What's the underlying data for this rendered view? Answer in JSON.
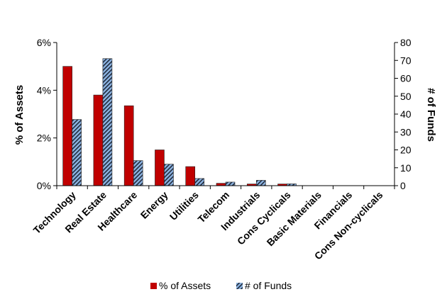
{
  "chart_data": {
    "type": "bar",
    "categories": [
      "Technology",
      "Real Estate",
      "Healthcare",
      "Energy",
      "Utilities",
      "Telecom",
      "Industrials",
      "Cons Cyclicals",
      "Basic Materials",
      "Financials",
      "Cons Non-cyclicals"
    ],
    "series": [
      {
        "name": "% of Assets",
        "axis": "left",
        "color": "#c00000",
        "values": [
          5.0,
          3.8,
          3.35,
          1.5,
          0.8,
          0.1,
          0.07,
          0.07,
          0,
          0,
          0
        ]
      },
      {
        "name": "# of Funds",
        "axis": "right",
        "color": "#8db4e2",
        "pattern": "diagonal-stripes",
        "values": [
          37,
          71,
          14,
          12,
          4,
          2,
          3,
          1,
          0,
          0,
          0
        ]
      }
    ],
    "y_left": {
      "label": "% of Assets",
      "ticks": [
        "0%",
        "2%",
        "4%",
        "6%"
      ],
      "range": [
        0,
        6
      ]
    },
    "y_right": {
      "label": "# of Funds",
      "ticks": [
        "0",
        "10",
        "20",
        "30",
        "40",
        "50",
        "60",
        "70",
        "80"
      ],
      "range": [
        0,
        80
      ]
    },
    "grid": false,
    "legend_position": "bottom"
  }
}
